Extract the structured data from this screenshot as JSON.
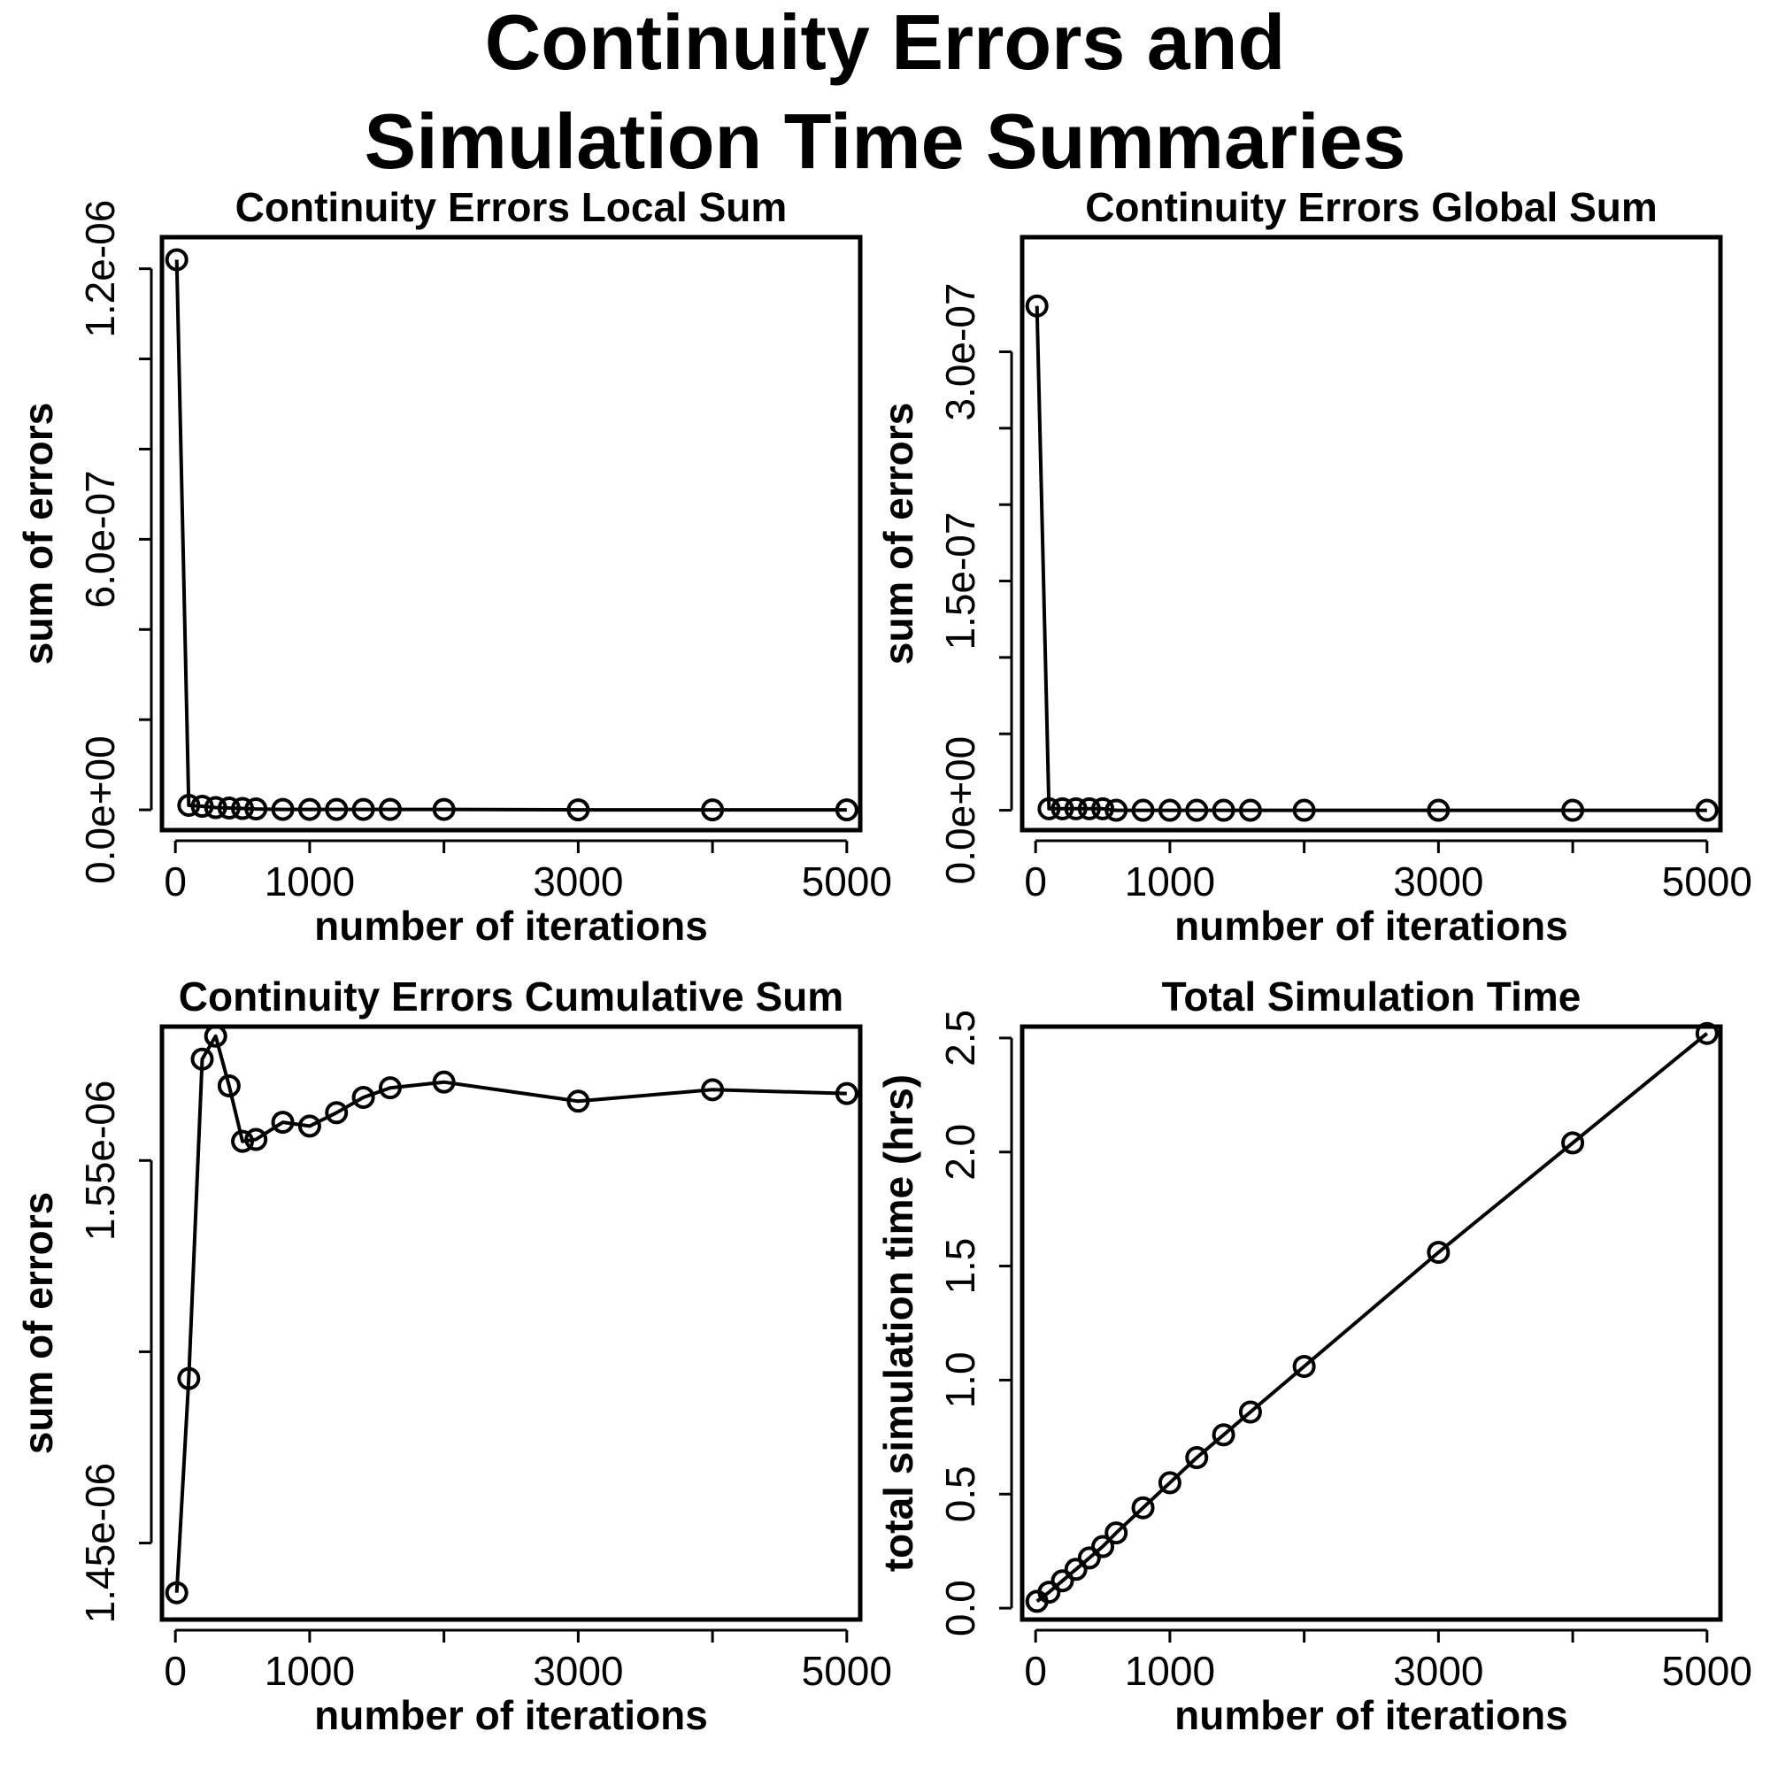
{
  "figure_title": [
    "Continuity Errors and",
    "Simulation Time Summaries"
  ],
  "chart_data": [
    {
      "type": "line",
      "title": "Continuity Errors Local Sum",
      "xlabel": "number of iterations",
      "ylabel": "sum of errors",
      "xlim": [
        -100,
        5100
      ],
      "ylim": [
        -4.5e-08,
        1.27e-06
      ],
      "x_ticks": [
        0,
        1000,
        2000,
        3000,
        4000,
        5000
      ],
      "x_tick_labels": [
        "0",
        "1000",
        "",
        "3000",
        "",
        "5000"
      ],
      "y_ticks": [
        0,
        2e-07,
        4e-07,
        6e-07,
        8e-07,
        1e-06,
        1.2e-06
      ],
      "y_tick_labels": [
        "0.0e+00",
        "",
        "",
        "6.0e-07",
        "",
        "",
        "1.2e-06"
      ],
      "x": [
        10,
        100,
        200,
        300,
        400,
        500,
        600,
        800,
        1000,
        1200,
        1400,
        1600,
        2000,
        3000,
        4000,
        5000
      ],
      "y": [
        1.22e-06,
        1e-08,
        8e-09,
        5e-09,
        4e-09,
        3e-09,
        2e-09,
        1e-09,
        1e-09,
        1e-09,
        1e-09,
        1e-09,
        1e-09,
        0,
        0,
        0
      ]
    },
    {
      "type": "line",
      "title": "Continuity Errors Global Sum",
      "xlabel": "number of iterations",
      "ylabel": "sum of errors",
      "xlim": [
        -100,
        5100
      ],
      "ylim": [
        -1.3e-08,
        3.75e-07
      ],
      "x_ticks": [
        0,
        1000,
        2000,
        3000,
        4000,
        5000
      ],
      "x_tick_labels": [
        "0",
        "1000",
        "",
        "3000",
        "",
        "5000"
      ],
      "y_ticks": [
        0,
        5e-08,
        1e-07,
        1.5e-07,
        2e-07,
        2.5e-07,
        3e-07
      ],
      "y_tick_labels": [
        "0.0e+00",
        "",
        "",
        "1.5e-07",
        "",
        "",
        "3.0e-07"
      ],
      "x": [
        10,
        100,
        200,
        300,
        400,
        500,
        600,
        800,
        1000,
        1200,
        1400,
        1600,
        2000,
        3000,
        4000,
        5000
      ],
      "y": [
        3.3e-07,
        1e-09,
        1e-09,
        1e-09,
        1e-09,
        1e-09,
        0,
        0,
        0,
        0,
        0,
        0,
        0,
        0,
        0,
        0
      ]
    },
    {
      "type": "line",
      "title": "Continuity Errors Cumulative Sum",
      "xlabel": "number of iterations",
      "ylabel": "sum of errors",
      "xlim": [
        -100,
        5100
      ],
      "ylim": [
        1.43e-06,
        1.585e-06
      ],
      "x_ticks": [
        0,
        1000,
        2000,
        3000,
        4000,
        5000
      ],
      "x_tick_labels": [
        "0",
        "1000",
        "",
        "3000",
        "",
        "5000"
      ],
      "y_ticks": [
        1.45e-06,
        1.5e-06,
        1.55e-06
      ],
      "y_tick_labels": [
        "1.45e-06",
        "",
        "1.55e-06"
      ],
      "x": [
        10,
        100,
        200,
        300,
        400,
        500,
        600,
        800,
        1000,
        1200,
        1400,
        1600,
        2000,
        3000,
        4000,
        5000
      ],
      "y": [
        1.437e-06,
        1.493e-06,
        1.5765e-06,
        1.5825e-06,
        1.5695e-06,
        1.555e-06,
        1.5555e-06,
        1.56e-06,
        1.559e-06,
        1.5625e-06,
        1.5665e-06,
        1.569e-06,
        1.5705e-06,
        1.5655e-06,
        1.5685e-06,
        1.5675e-06
      ]
    },
    {
      "type": "line",
      "title": "Total Simulation Time",
      "xlabel": "number of iterations",
      "ylabel": "total simulation time (hrs)",
      "xlim": [
        -100,
        5100
      ],
      "ylim": [
        -0.05,
        2.55
      ],
      "x_ticks": [
        0,
        1000,
        2000,
        3000,
        4000,
        5000
      ],
      "x_tick_labels": [
        "0",
        "1000",
        "",
        "3000",
        "",
        "5000"
      ],
      "y_ticks": [
        0.0,
        0.5,
        1.0,
        1.5,
        2.0,
        2.5
      ],
      "y_tick_labels": [
        "0.0",
        "0.5",
        "1.0",
        "1.5",
        "2.0",
        "2.5"
      ],
      "x": [
        10,
        100,
        200,
        300,
        400,
        500,
        600,
        800,
        1000,
        1200,
        1400,
        1600,
        2000,
        3000,
        4000,
        5000
      ],
      "y": [
        0.03,
        0.07,
        0.12,
        0.17,
        0.22,
        0.27,
        0.33,
        0.44,
        0.55,
        0.66,
        0.76,
        0.86,
        1.06,
        1.56,
        2.04,
        2.52
      ]
    }
  ]
}
